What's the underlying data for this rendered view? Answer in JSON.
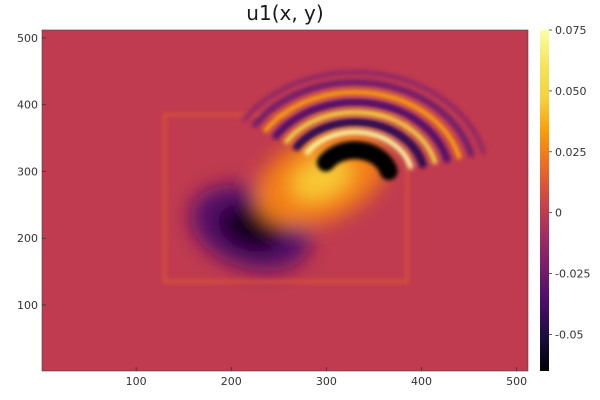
{
  "chart_data": {
    "type": "heatmap",
    "title": "u1(x, y)",
    "xlabel": "",
    "ylabel": "",
    "xlim": [
      1,
      512
    ],
    "ylim": [
      1,
      512
    ],
    "x_ticks": [
      100,
      200,
      300,
      400,
      500
    ],
    "y_ticks": [
      100,
      200,
      300,
      400,
      500
    ],
    "colormap": "inferno",
    "colorbar": {
      "range": [
        -0.065,
        0.075
      ],
      "ticks": [
        -0.05,
        -0.025,
        0,
        0.025,
        0.05,
        0.075
      ],
      "tick_labels": [
        "-0.05",
        "-0.025",
        "0",
        "0.025",
        "0.050",
        "0.075"
      ]
    },
    "background_value": 0,
    "field_features": [
      {
        "kind": "rectangle_boundary",
        "x": [
          130,
          385
        ],
        "y": [
          135,
          385
        ]
      },
      {
        "kind": "minimum",
        "x": 220,
        "y": 215,
        "value": -0.06
      },
      {
        "kind": "maximum",
        "x": 295,
        "y": 290,
        "value": 0.045
      },
      {
        "kind": "curved_wave_trail",
        "x": [
          330,
          460
        ],
        "y": [
          300,
          440
        ],
        "value_range": [
          -0.065,
          0.075
        ]
      }
    ]
  }
}
